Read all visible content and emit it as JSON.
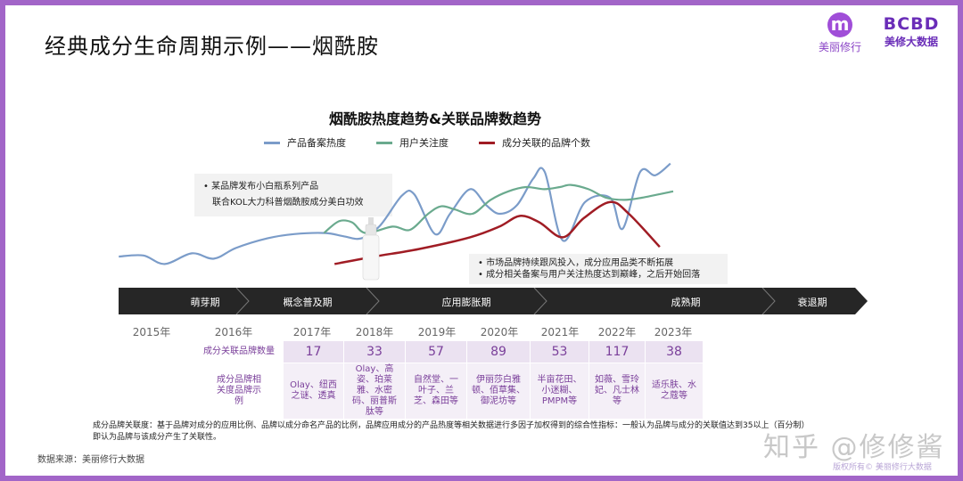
{
  "header": {
    "title": "经典成分生命周期示例——烟酰胺",
    "logo1_text": "美丽修行",
    "logo1_mark": "m",
    "logo2_mark": "BCBD",
    "logo2_text": "美修大数据"
  },
  "colors": {
    "border": "#a265c8",
    "blue": "#7b9cc9",
    "green": "#6aaa8e",
    "red": "#a01c24",
    "timeline": "#262626",
    "table_text": "#7a3f9a"
  },
  "chart_data": {
    "type": "line",
    "title": "烟酰胺热度趋势&关联品牌数趋势",
    "legend_position": "top",
    "grid": false,
    "y_axis_shown": false,
    "series": [
      {
        "name": "产品备案热度",
        "points": [
          [
            2014.6,
            10
          ],
          [
            2014.9,
            11
          ],
          [
            2015.16,
            3
          ],
          [
            2015.49,
            13
          ],
          [
            2015.76,
            8
          ],
          [
            2016.03,
            18
          ],
          [
            2016.43,
            27
          ],
          [
            2016.77,
            31
          ],
          [
            2017.21,
            32
          ],
          [
            2017.5,
            29
          ],
          [
            2017.79,
            27
          ],
          [
            2018.09,
            39
          ],
          [
            2018.44,
            67
          ],
          [
            2018.64,
            68
          ],
          [
            2018.97,
            31
          ],
          [
            2019.21,
            50
          ],
          [
            2019.53,
            73
          ],
          [
            2019.79,
            58
          ],
          [
            2020.01,
            50
          ],
          [
            2020.29,
            58
          ],
          [
            2020.56,
            83
          ],
          [
            2020.75,
            89
          ],
          [
            2021.05,
            25
          ],
          [
            2021.44,
            61
          ],
          [
            2021.88,
            65
          ],
          [
            2022.1,
            36
          ],
          [
            2022.41,
            89
          ],
          [
            2022.68,
            86
          ],
          [
            2022.95,
            97
          ]
        ]
      },
      {
        "name": "用户关注度",
        "points": [
          [
            2017.19,
            32
          ],
          [
            2017.43,
            43
          ],
          [
            2017.64,
            42
          ],
          [
            2017.86,
            32
          ],
          [
            2018.29,
            38
          ],
          [
            2018.57,
            35
          ],
          [
            2018.86,
            50
          ],
          [
            2019.07,
            57
          ],
          [
            2019.29,
            54
          ],
          [
            2019.57,
            50
          ],
          [
            2019.86,
            63
          ],
          [
            2020.15,
            71
          ],
          [
            2020.44,
            75
          ],
          [
            2020.74,
            73
          ],
          [
            2021.0,
            75
          ],
          [
            2021.19,
            77
          ],
          [
            2021.5,
            73
          ],
          [
            2021.81,
            65
          ],
          [
            2022.13,
            63
          ],
          [
            2022.44,
            65
          ],
          [
            2023.0,
            71
          ]
        ]
      },
      {
        "name": "成分关联的品牌个数",
        "points": [
          [
            2017.36,
            3
          ],
          [
            2018.0,
            10
          ],
          [
            2018.71,
            17
          ],
          [
            2019.53,
            28
          ],
          [
            2020.0,
            38
          ],
          [
            2020.34,
            48
          ],
          [
            2020.66,
            42
          ],
          [
            2021.05,
            28
          ],
          [
            2021.42,
            46
          ],
          [
            2021.88,
            61
          ],
          [
            2022.21,
            50
          ],
          [
            2022.76,
            19
          ]
        ]
      }
    ]
  },
  "annotations": {
    "note1": [
      "•  某品牌发布小白瓶系列产品",
      "    联合KOL大力科普烟酰胺成分美白功效"
    ],
    "note2": [
      "•  市场品牌持续跟风投入，成分应用品类不断拓展",
      "•  成分相关备案与用户关注热度达到巅峰，之后开始回落"
    ]
  },
  "timeline": [
    "萌芽期",
    "概念普及期",
    "应用膨胀期",
    "成熟期",
    "衰退期"
  ],
  "years": [
    "2015年",
    "2016年",
    "2017年",
    "2018年",
    "2019年",
    "2020年",
    "2021年",
    "2022年",
    "2023年"
  ],
  "table": {
    "row1_label": "成分关联品牌数量",
    "row2_label": "成分品牌相关度品牌示例",
    "counts": [
      "17",
      "33",
      "57",
      "89",
      "53",
      "117",
      "38"
    ],
    "examples": [
      "Olay、纽西之谜、透真",
      "Olay、高姿、珀莱雅、水密码、丽普斯肽等",
      "自然堂、一叶子、兰芝、森田等",
      "伊丽莎白雅顿、佰草集、御泥坊等",
      "半亩花田、小迷糊、PMPM等",
      "如薇、雪玲妃、凡士林等",
      "适乐肤、水之蔻等"
    ]
  },
  "footnote": [
    "成分品牌关联度：基于品牌对成分的应用比例、品牌以成分命名产品的比例，品牌应用成分的产品热度等相关数据进行多因子加权得到的综合性指标：一般认为品牌与成分的关联值达到35以上（百分制）",
    "即认为品牌与该成分产生了关联性。"
  ],
  "source": "数据来源：美丽修行大数据",
  "watermark": "知乎 @修修酱",
  "copyright": "版权所有© 美丽修行大数据"
}
